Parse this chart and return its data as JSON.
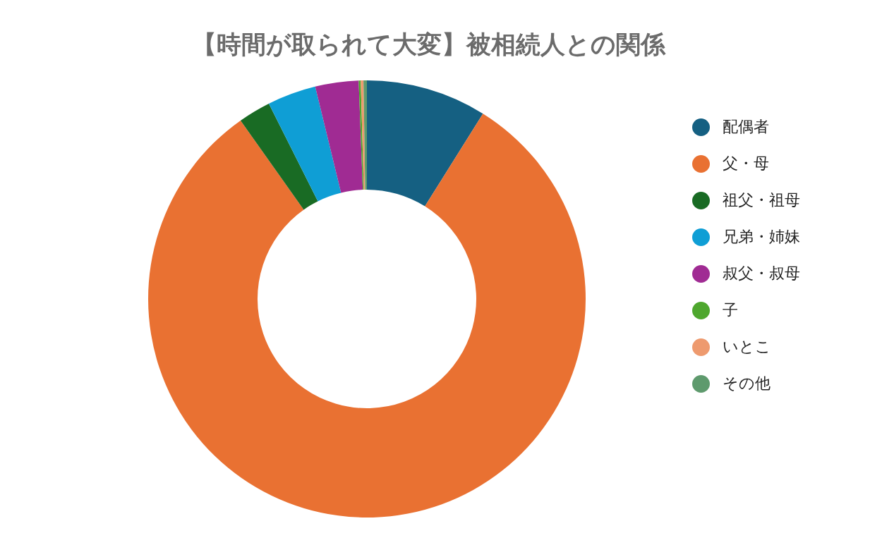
{
  "chart_data": {
    "type": "donut",
    "title": "【時間が取られて大変】被相続人との関係",
    "categories": [
      "配偶者",
      "父・母",
      "祖父・祖母",
      "兄弟・姉妹",
      "叔父・叔母",
      "子",
      "いとこ",
      "その他"
    ],
    "values": [
      8.9,
      81.3,
      2.4,
      3.6,
      3.2,
      0.15,
      0.2,
      0.25
    ],
    "colors": [
      "#156082",
      "#e97132",
      "#196b24",
      "#0f9ed5",
      "#a02b93",
      "#4ea72e",
      "#ee9a6e",
      "#5e9a6d"
    ],
    "legend": "right"
  }
}
